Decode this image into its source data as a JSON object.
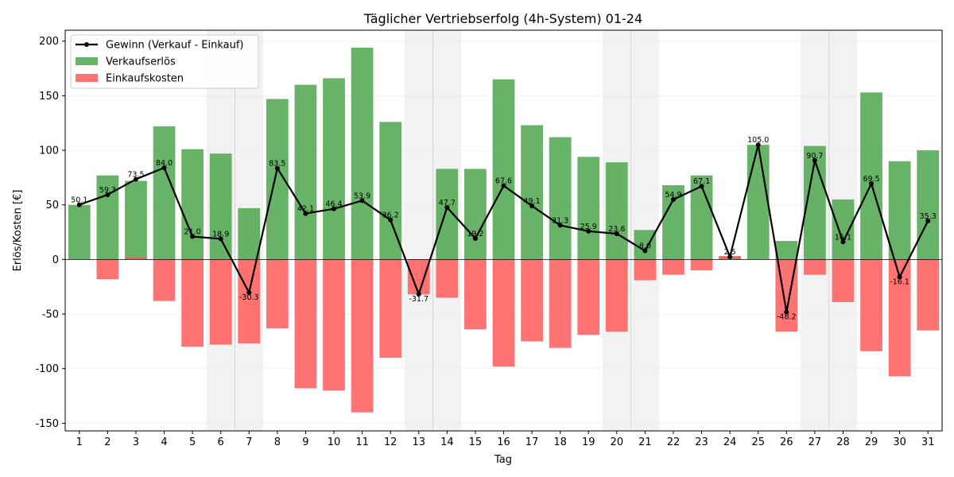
{
  "chart_data": {
    "type": "bar",
    "title": "Täglicher Vertriebserfolg (4h-System) 01-24",
    "xlabel": "Tag",
    "ylabel": "Erlös/Kosten [€]",
    "ylim": [
      -157,
      210
    ],
    "yticks": [
      -150,
      -100,
      -50,
      0,
      50,
      100,
      150,
      200
    ],
    "grid": "horizontal-dotted",
    "legend_position": "top-left",
    "categories": [
      1,
      2,
      3,
      4,
      5,
      6,
      7,
      8,
      9,
      10,
      11,
      12,
      13,
      14,
      15,
      16,
      17,
      18,
      19,
      20,
      21,
      22,
      23,
      24,
      25,
      26,
      27,
      28,
      29,
      30,
      31
    ],
    "weekend_shading": [
      [
        6,
        7
      ],
      [
        13,
        14
      ],
      [
        20,
        21
      ],
      [
        27,
        28
      ]
    ],
    "series": [
      {
        "name": "Verkaufserlös",
        "kind": "bar",
        "color": "#4ca64c",
        "values": [
          50,
          77,
          72,
          122,
          101,
          97,
          47,
          147,
          160,
          166,
          194,
          126,
          0,
          83,
          83,
          165,
          123,
          112,
          94,
          89,
          27,
          68,
          77,
          3,
          105,
          17,
          104,
          55,
          153,
          90,
          100
        ]
      },
      {
        "name": "Einkaufskosten",
        "kind": "bar",
        "color": "#ff5a5a",
        "values": [
          0,
          -18,
          2,
          -38,
          -80,
          -78,
          -77,
          -63,
          -118,
          -120,
          -140,
          -90,
          -32,
          -35,
          -64,
          -98,
          -75,
          -81,
          -69,
          -66,
          -19,
          -14,
          -10,
          3,
          0,
          -66,
          -14,
          -39,
          -84,
          -107,
          -65
        ]
      },
      {
        "name": "Gewinn (Verkauf - Einkauf)",
        "kind": "line",
        "color": "#000000",
        "values": [
          50.1,
          59.3,
          73.5,
          84.0,
          21.0,
          18.9,
          -30.3,
          83.5,
          42.1,
          46.4,
          53.9,
          36.2,
          -31.7,
          47.7,
          19.2,
          67.6,
          49.1,
          31.3,
          25.9,
          23.6,
          8.0,
          54.9,
          67.1,
          2.5,
          105.0,
          -48.2,
          90.7,
          16.1,
          69.5,
          -16.1,
          35.3
        ],
        "labels": [
          "50.1",
          "59.3",
          "73.5",
          "84.0",
          "21.0",
          "18.9",
          "-30.3",
          "83.5",
          "42.1",
          "46.4",
          "53.9",
          "36.2",
          "-31.7",
          "47.7",
          "19.2",
          "67.6",
          "49.1",
          "31.3",
          "25.9",
          "23.6",
          "8.0",
          "54.9",
          "67.1",
          "2.5",
          "105.0",
          "-48.2",
          "90.7",
          "16.1",
          "69.5",
          "-16.1",
          "35.3"
        ]
      }
    ]
  }
}
